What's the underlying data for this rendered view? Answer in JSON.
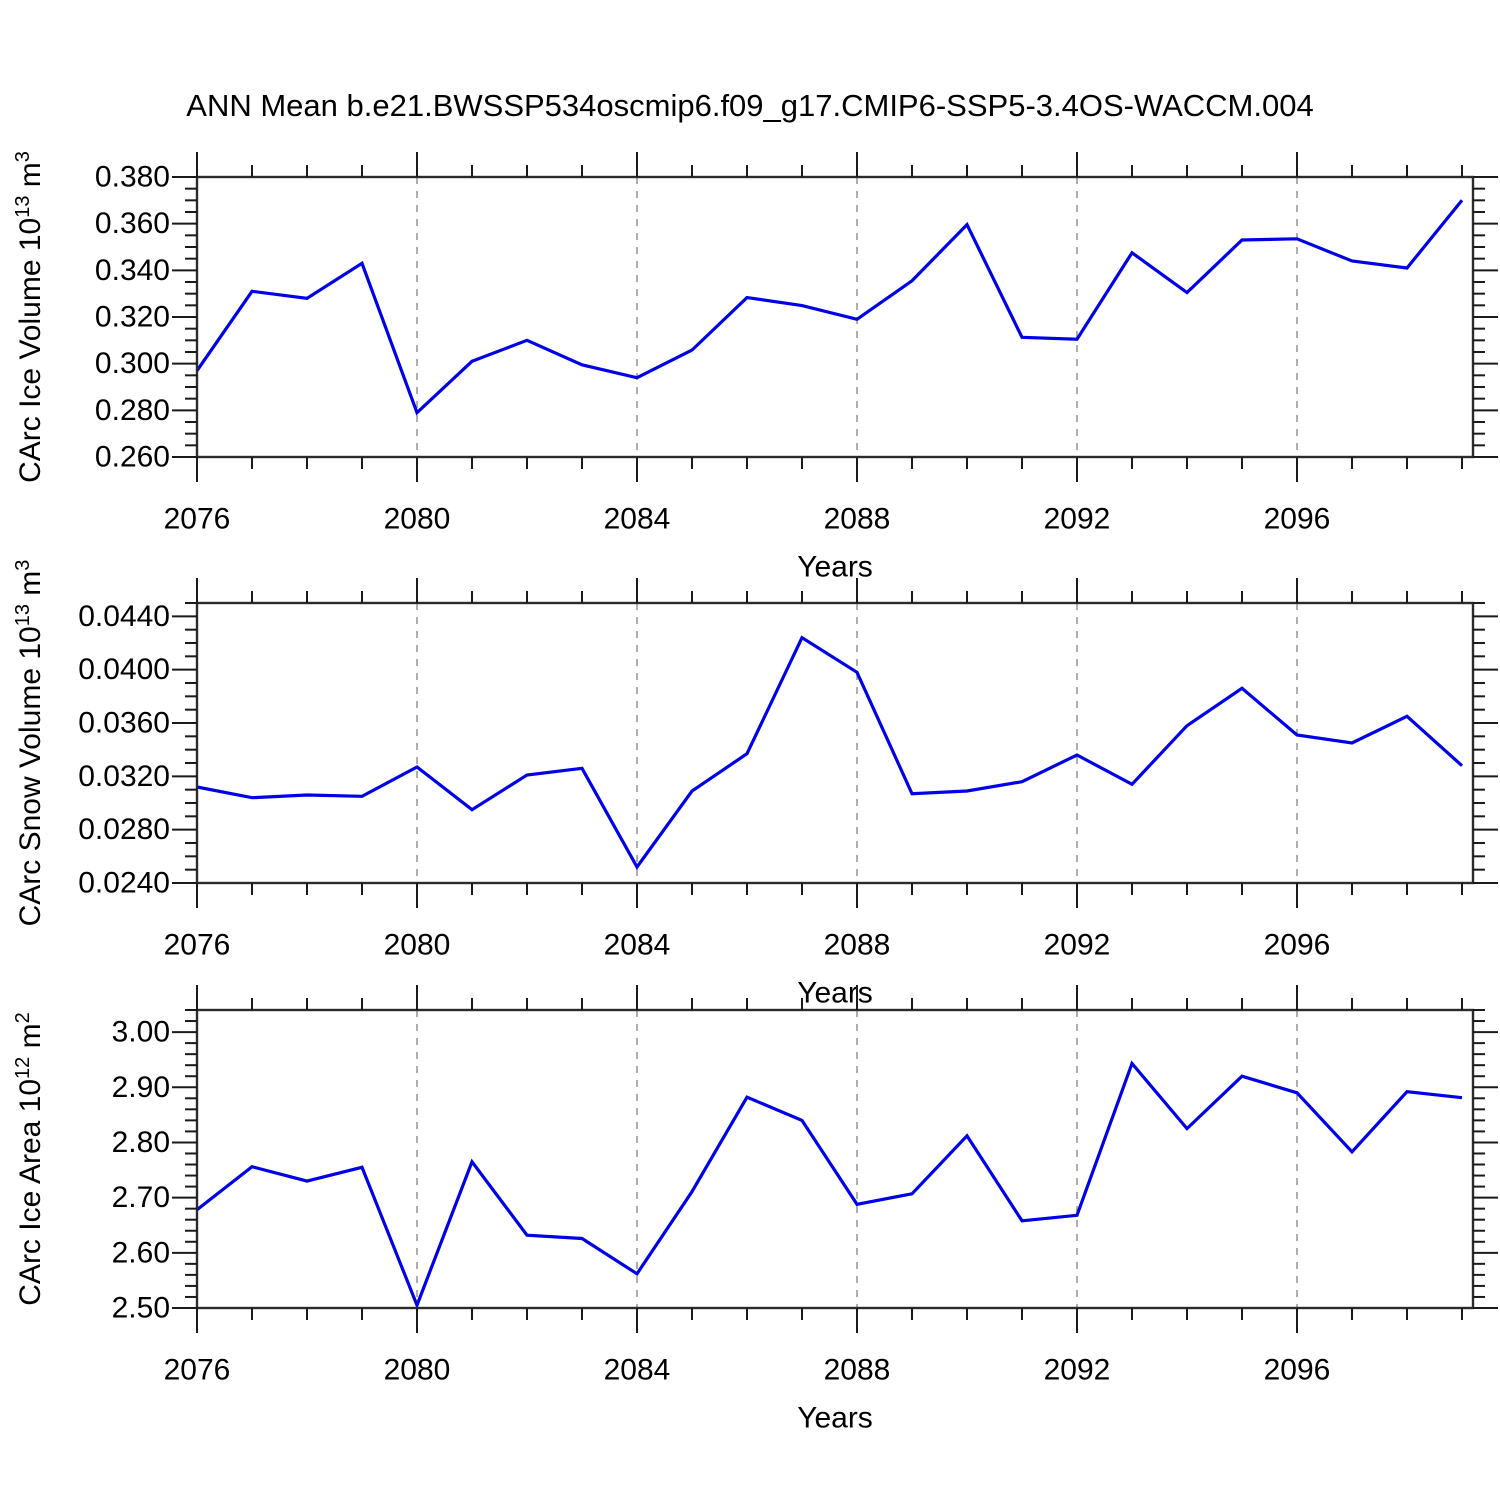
{
  "title": "ANN Mean b.e21.BWSSP534oscmip6.f09_g17.CMIP6-SSP5-3.4OS-WACCM.004",
  "colors": {
    "line": "#0000E8",
    "gridline": "#8c8c8c",
    "frame": "#2b2b2b",
    "tick": "#1a1a1a",
    "text": "#000000",
    "background": "#ffffff"
  },
  "x_axis": {
    "label": "Years",
    "range": [
      2076,
      2099.2
    ],
    "years": [
      2076,
      2077,
      2078,
      2079,
      2080,
      2081,
      2082,
      2083,
      2084,
      2085,
      2086,
      2087,
      2088,
      2089,
      2090,
      2091,
      2092,
      2093,
      2094,
      2095,
      2096,
      2097,
      2098,
      2099
    ],
    "major_ticks": [
      2076,
      2080,
      2084,
      2088,
      2092,
      2096
    ],
    "gridlines": [
      2080,
      2084,
      2088,
      2092,
      2096
    ]
  },
  "chart_data": [
    {
      "type": "line",
      "id": "ice-volume",
      "ylabel": "CArc Ice Volume 10¹³ m³",
      "ylabel_parts": [
        {
          "text": "CArc Ice Volume 10"
        },
        {
          "text": "13",
          "sup": true
        },
        {
          "text": " m"
        },
        {
          "text": "3",
          "sup": true
        }
      ],
      "x": [
        2076,
        2077,
        2078,
        2079,
        2080,
        2081,
        2082,
        2083,
        2084,
        2085,
        2086,
        2087,
        2088,
        2089,
        2090,
        2091,
        2092,
        2093,
        2094,
        2095,
        2096,
        2097,
        2098,
        2099
      ],
      "values": [
        0.297,
        0.331,
        0.328,
        0.343,
        0.279,
        0.301,
        0.31,
        0.2995,
        0.294,
        0.3058,
        0.3283,
        0.3249,
        0.319,
        0.3355,
        0.3596,
        0.3113,
        0.3105,
        0.3475,
        0.3305,
        0.353,
        0.3535,
        0.344,
        0.341,
        0.37
      ],
      "y_axis": {
        "frame_range": [
          0.26,
          0.38
        ],
        "major_start": 0.26,
        "major_end": 0.38,
        "major_step": 0.02,
        "minor_step": 0.005,
        "decimals": 3
      }
    },
    {
      "type": "line",
      "id": "snow-volume",
      "ylabel": "CArc Snow Volume 10¹³ m³",
      "ylabel_parts": [
        {
          "text": "CArc Snow Volume 10"
        },
        {
          "text": "13",
          "sup": true
        },
        {
          "text": " m"
        },
        {
          "text": "3",
          "sup": true
        }
      ],
      "x": [
        2076,
        2077,
        2078,
        2079,
        2080,
        2081,
        2082,
        2083,
        2084,
        2085,
        2086,
        2087,
        2088,
        2089,
        2090,
        2091,
        2092,
        2093,
        2094,
        2095,
        2096,
        2097,
        2098,
        2099
      ],
      "values": [
        0.0312,
        0.0304,
        0.0306,
        0.0305,
        0.0327,
        0.0295,
        0.0321,
        0.0326,
        0.0252,
        0.0309,
        0.0337,
        0.0424,
        0.0398,
        0.0307,
        0.0309,
        0.0316,
        0.0336,
        0.0314,
        0.0358,
        0.0386,
        0.0351,
        0.0345,
        0.0365,
        0.0328
      ],
      "y_axis": {
        "frame_range": [
          0.024,
          0.045
        ],
        "major_start": 0.024,
        "major_end": 0.044,
        "major_step": 0.004,
        "minor_step": 0.001,
        "decimals": 4
      }
    },
    {
      "type": "line",
      "id": "ice-area",
      "ylabel": "CArc Ice Area 10¹² m²",
      "ylabel_parts": [
        {
          "text": "CArc Ice Area 10"
        },
        {
          "text": "12",
          "sup": true
        },
        {
          "text": " m"
        },
        {
          "text": "2",
          "sup": true
        }
      ],
      "x": [
        2076,
        2077,
        2078,
        2079,
        2080,
        2081,
        2082,
        2083,
        2084,
        2085,
        2086,
        2087,
        2088,
        2089,
        2090,
        2091,
        2092,
        2093,
        2094,
        2095,
        2096,
        2097,
        2098,
        2099
      ],
      "values": [
        2.678,
        2.756,
        2.73,
        2.755,
        2.505,
        2.765,
        2.632,
        2.626,
        2.562,
        2.711,
        2.882,
        2.84,
        2.688,
        2.707,
        2.812,
        2.658,
        2.668,
        2.943,
        2.825,
        2.92,
        2.89,
        2.783,
        2.892,
        2.881
      ],
      "y_axis": {
        "frame_range": [
          2.5,
          3.04
        ],
        "major_start": 2.5,
        "major_end": 3.0,
        "major_step": 0.1,
        "minor_step": 0.02,
        "decimals": 2
      }
    }
  ]
}
